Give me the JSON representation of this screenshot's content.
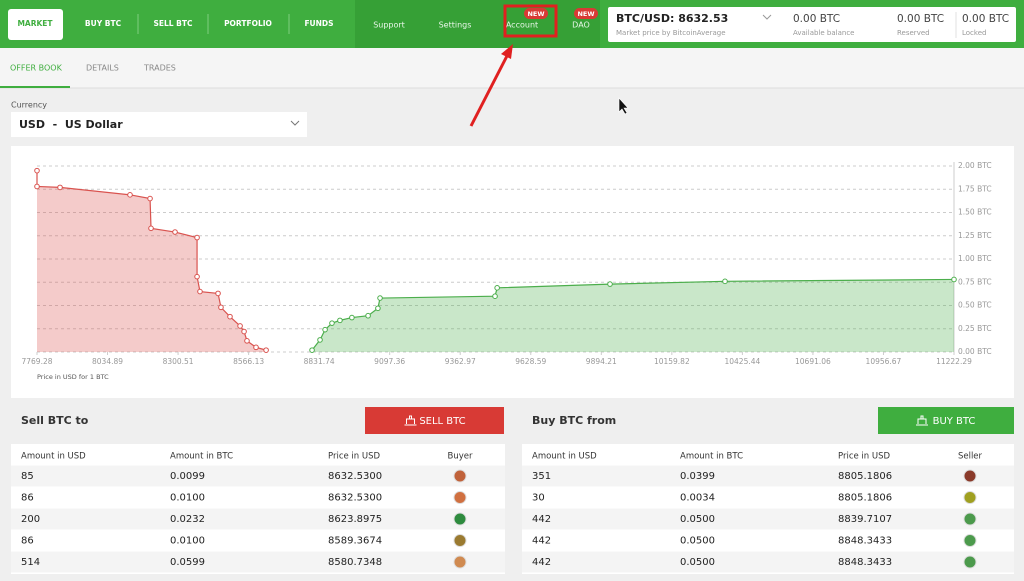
{
  "nav": {
    "tabs": [
      "MARKET",
      "BUY BTC",
      "SELL BTC",
      "PORTFOLIO",
      "FUNDS"
    ],
    "links": [
      "Support",
      "Settings",
      "Account",
      "DAO"
    ],
    "badges": [
      "NEW",
      "NEW"
    ]
  },
  "ticker": {
    "pair": "BTC/USD: 8632.53",
    "pair_note": "Market price by BitcoinAverage",
    "balances": [
      {
        "value": "0.00 BTC",
        "label": "Available balance"
      },
      {
        "value": "0.00 BTC",
        "label": "Reserved"
      },
      {
        "value": "0.00 BTC",
        "label": "Locked"
      }
    ]
  },
  "subtabs": [
    "OFFER BOOK",
    "DETAILS",
    "TRADES"
  ],
  "currency": {
    "label": "Currency",
    "selected": "USD  -  US Dollar"
  },
  "depth_chart": {
    "type": "area",
    "x_label": "Price in USD for 1 BTC",
    "xlim": [
      7769.28,
      11222.29
    ],
    "xticks": [
      7769.28,
      8034.89,
      8300.51,
      8566.13,
      8831.74,
      9097.36,
      9362.97,
      9628.59,
      9894.21,
      10159.82,
      10425.44,
      10691.06,
      10956.67,
      11222.29
    ],
    "ylim": [
      0,
      2
    ],
    "yticks": [
      {
        "value": 0,
        "label": "0.00 BTC"
      },
      {
        "value": 0.25,
        "label": "0.25 BTC"
      },
      {
        "value": 0.5,
        "label": "0.50 BTC"
      },
      {
        "value": 0.75,
        "label": "0.75 BTC"
      },
      {
        "value": 1,
        "label": "1.00 BTC"
      },
      {
        "value": 1.25,
        "label": "1.25 BTC"
      },
      {
        "value": 1.5,
        "label": "1.50 BTC"
      },
      {
        "value": 1.75,
        "label": "1.75 BTC"
      },
      {
        "value": 2,
        "label": "2.00 BTC"
      }
    ],
    "grid": true,
    "series": [
      {
        "color": "#d9534f",
        "x": [
          7769.28,
          7769.28,
          7856,
          8119.5,
          8195,
          8198.6,
          8289,
          8372,
          8372,
          8383,
          8451,
          8462,
          8496,
          8534,
          8549,
          8560,
          8594,
          8632
        ],
        "y": [
          1.95,
          1.78,
          1.77,
          1.69,
          1.65,
          1.33,
          1.29,
          1.23,
          0.81,
          0.65,
          0.63,
          0.48,
          0.38,
          0.28,
          0.22,
          0.12,
          0.05,
          0.02
        ]
      },
      {
        "color": "#4cae4c",
        "x": [
          8805,
          8835,
          8854,
          8880,
          8910,
          8955,
          9016,
          9053,
          9061,
          9494,
          9502,
          9927,
          10360,
          11222.29
        ],
        "y": [
          0.02,
          0.13,
          0.24,
          0.31,
          0.34,
          0.37,
          0.39,
          0.47,
          0.58,
          0.6,
          0.69,
          0.73,
          0.76,
          0.78
        ]
      }
    ]
  },
  "sell": {
    "title": "Sell BTC to",
    "button": "SELL BTC",
    "columns": [
      "Amount in USD",
      "Amount in BTC",
      "Price in USD",
      "Buyer"
    ],
    "rows": [
      [
        "85",
        "0.0099",
        "8632.5300"
      ],
      [
        "86",
        "0.0100",
        "8632.5300"
      ],
      [
        "200",
        "0.0232",
        "8623.8975"
      ],
      [
        "86",
        "0.0100",
        "8589.3674"
      ],
      [
        "514",
        "0.0599",
        "8580.7348"
      ]
    ]
  },
  "buy": {
    "title": "Buy BTC from",
    "button": "BUY BTC",
    "columns": [
      "Amount in USD",
      "Amount in BTC",
      "Price in USD",
      "Seller"
    ],
    "rows": [
      [
        "351",
        "0.0399",
        "8805.1806"
      ],
      [
        "30",
        "0.0034",
        "8805.1806"
      ],
      [
        "442",
        "0.0500",
        "8839.7107"
      ],
      [
        "442",
        "0.0500",
        "8848.3433"
      ],
      [
        "442",
        "0.0500",
        "8848.3433"
      ]
    ]
  }
}
